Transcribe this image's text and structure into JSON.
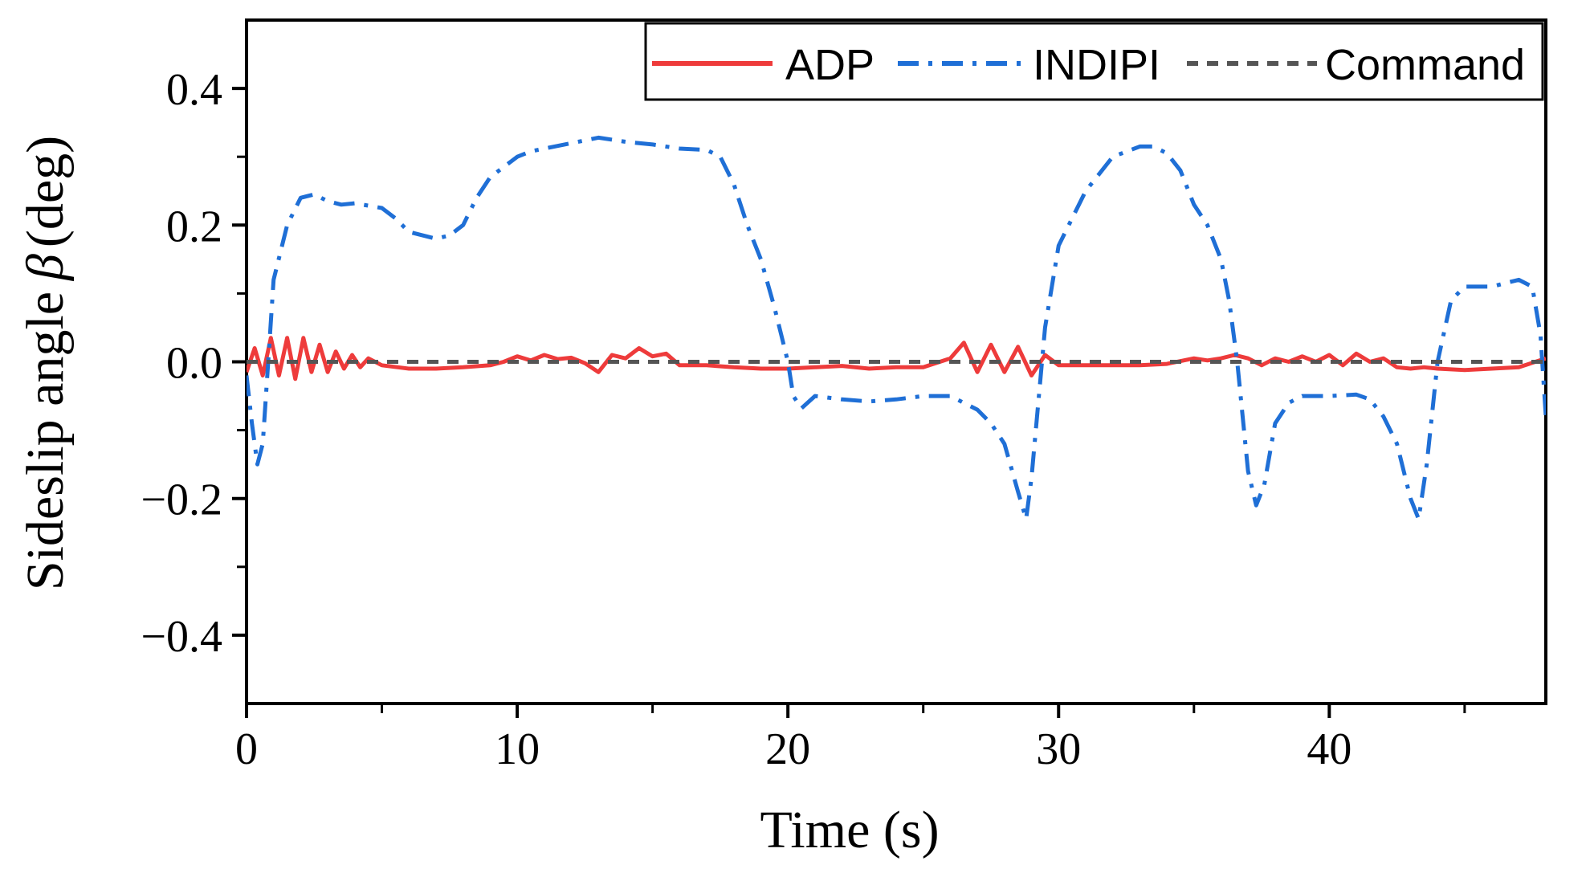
{
  "chart_data": {
    "type": "line",
    "title": "",
    "xlabel": "Time (s)",
    "ylabel_prefix": "Sideslip angle",
    "ylabel_symbol": "β",
    "ylabel_suffix": "(deg)",
    "xlim": [
      0,
      48
    ],
    "ylim": [
      -0.5,
      0.5
    ],
    "x_ticks": [
      0,
      10,
      20,
      30,
      40
    ],
    "x_tick_labels": [
      "0",
      "10",
      "20",
      "30",
      "40"
    ],
    "x_minor_ticks": [
      5,
      15,
      25,
      35,
      45
    ],
    "y_ticks": [
      0.4,
      0.2,
      0.0,
      -0.2,
      -0.4
    ],
    "y_tick_labels": [
      "0.4",
      "0.2",
      "0.0",
      "−0.2",
      "−0.4"
    ],
    "y_minor_ticks": [
      0.3,
      0.1,
      -0.1,
      -0.3
    ],
    "grid": false,
    "legend_position": "top-right",
    "series": [
      {
        "name": "ADP",
        "color": "#EE3B3B",
        "style": "solid",
        "x": [
          0,
          0.3,
          0.6,
          0.9,
          1.2,
          1.5,
          1.8,
          2.1,
          2.4,
          2.7,
          3.0,
          3.3,
          3.6,
          3.9,
          4.2,
          4.5,
          5,
          6,
          7,
          8,
          9,
          9.5,
          10,
          10.5,
          11,
          11.5,
          12,
          12.5,
          13,
          13.5,
          14,
          14.5,
          15,
          15.5,
          16,
          17,
          18,
          19,
          20,
          21,
          22,
          23,
          24,
          25,
          26,
          26.5,
          27,
          27.5,
          28,
          28.5,
          29,
          29.5,
          30,
          31,
          32,
          33,
          34,
          35,
          35.5,
          36,
          36.5,
          37,
          37.5,
          38,
          38.5,
          39,
          39.5,
          40,
          40.5,
          41,
          41.5,
          42,
          42.5,
          43,
          43.5,
          44,
          45,
          46,
          47,
          48
        ],
        "values": [
          -0.015,
          0.02,
          -0.02,
          0.035,
          -0.02,
          0.035,
          -0.025,
          0.035,
          -0.015,
          0.025,
          -0.015,
          0.015,
          -0.01,
          0.01,
          -0.008,
          0.005,
          -0.005,
          -0.01,
          -0.01,
          -0.008,
          -0.005,
          0.0,
          0.008,
          0.002,
          0.01,
          0.004,
          0.006,
          -0.002,
          -0.015,
          0.01,
          0.005,
          0.02,
          0.008,
          0.012,
          -0.005,
          -0.005,
          -0.008,
          -0.01,
          -0.01,
          -0.008,
          -0.006,
          -0.01,
          -0.008,
          -0.008,
          0.005,
          0.028,
          -0.015,
          0.025,
          -0.015,
          0.022,
          -0.02,
          0.01,
          -0.005,
          -0.005,
          -0.005,
          -0.005,
          -0.003,
          0.005,
          0.002,
          0.005,
          0.01,
          0.005,
          -0.005,
          0.005,
          0.0,
          0.008,
          0.0,
          0.01,
          -0.005,
          0.012,
          0.0,
          0.005,
          -0.008,
          -0.01,
          -0.008,
          -0.01,
          -0.012,
          -0.01,
          -0.008,
          0.005
        ],
        "line_width": 5
      },
      {
        "name": "INDIPI",
        "color": "#1F6FD6",
        "style": "dashdot",
        "x": [
          0,
          0.2,
          0.4,
          0.6,
          0.8,
          1.0,
          1.5,
          2.0,
          2.5,
          3.0,
          3.5,
          4,
          5,
          5.5,
          6,
          7,
          7.5,
          8,
          8.5,
          9,
          10,
          10.5,
          11,
          12,
          13,
          14,
          15,
          16,
          17,
          17.5,
          18,
          18.5,
          19,
          19.5,
          20,
          20.2,
          20.5,
          21,
          22,
          23,
          24,
          25,
          26,
          27,
          27.5,
          28,
          28.5,
          28.8,
          29,
          29.5,
          30,
          31,
          32,
          33,
          33.5,
          34,
          34.5,
          35,
          35.5,
          36,
          36.3,
          36.6,
          37,
          37.3,
          37.6,
          38,
          38.5,
          39,
          40,
          41,
          41.5,
          42,
          42.5,
          43,
          43.3,
          43.6,
          44,
          44.5,
          45,
          45.5,
          46,
          46.5,
          47,
          47.5,
          47.8,
          48
        ],
        "values": [
          -0.02,
          -0.09,
          -0.15,
          -0.12,
          0.0,
          0.12,
          0.2,
          0.24,
          0.245,
          0.235,
          0.23,
          0.232,
          0.225,
          0.21,
          0.19,
          0.18,
          0.185,
          0.2,
          0.24,
          0.27,
          0.3,
          0.308,
          0.312,
          0.32,
          0.328,
          0.322,
          0.318,
          0.312,
          0.31,
          0.3,
          0.26,
          0.2,
          0.15,
          0.08,
          0.0,
          -0.05,
          -0.068,
          -0.05,
          -0.055,
          -0.058,
          -0.055,
          -0.05,
          -0.05,
          -0.07,
          -0.09,
          -0.12,
          -0.19,
          -0.23,
          -0.17,
          0.05,
          0.17,
          0.25,
          0.3,
          0.315,
          0.315,
          0.305,
          0.28,
          0.23,
          0.2,
          0.15,
          0.09,
          0.0,
          -0.16,
          -0.21,
          -0.18,
          -0.09,
          -0.06,
          -0.05,
          -0.05,
          -0.048,
          -0.055,
          -0.08,
          -0.12,
          -0.2,
          -0.23,
          -0.15,
          0.0,
          0.09,
          0.11,
          0.11,
          0.11,
          0.115,
          0.12,
          0.11,
          0.04,
          -0.08
        ],
        "line_width": 5
      },
      {
        "name": "Command",
        "color": "#555555",
        "style": "dashed",
        "x": [
          0,
          48
        ],
        "values": [
          0,
          0
        ],
        "line_width": 5
      }
    ]
  }
}
